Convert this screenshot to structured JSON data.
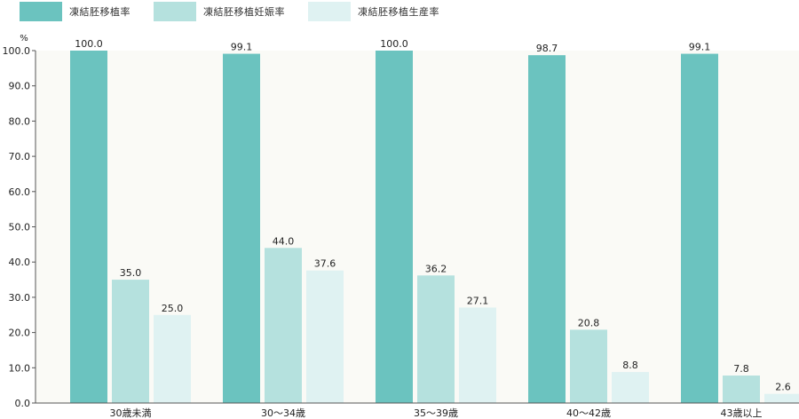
{
  "legend": [
    {
      "label": "凍結胚移植率",
      "color": "#6bc3bf"
    },
    {
      "label": "凍結胚移植妊娠率",
      "color": "#b5e1de"
    },
    {
      "label": "凍結胚移植生産率",
      "color": "#dff2f2"
    }
  ],
  "chart_data": {
    "type": "bar",
    "ylabel": "%",
    "ylim": [
      0,
      100
    ],
    "yticks": [
      "0.0",
      "10.0",
      "20.0",
      "30.0",
      "40.0",
      "50.0",
      "60.0",
      "70.0",
      "80.0",
      "90.0",
      "100.0"
    ],
    "categories": [
      "30歳未満",
      "30～34歳",
      "35～39歳",
      "40～42歳",
      "43歳以上"
    ],
    "series": [
      {
        "name": "凍結胚移植率",
        "color": "#6bc3bf",
        "values": [
          100.0,
          99.1,
          100.0,
          98.7,
          99.1
        ],
        "labels": [
          "100.0",
          "99.1",
          "100.0",
          "98.7",
          "99.1"
        ]
      },
      {
        "name": "凍結胚移植妊娠率",
        "color": "#b5e1de",
        "values": [
          35.0,
          44.0,
          36.2,
          20.8,
          7.8
        ],
        "labels": [
          "35.0",
          "44.0",
          "36.2",
          "20.8",
          "7.8"
        ]
      },
      {
        "name": "凍結胚移植生産率",
        "color": "#dff2f2",
        "values": [
          25.0,
          37.6,
          27.1,
          8.8,
          2.6
        ],
        "labels": [
          "25.0",
          "37.6",
          "27.1",
          "8.8",
          "2.6"
        ]
      }
    ],
    "plot_background": "#fafaf6",
    "legend_position": "top-left",
    "grid": false
  }
}
